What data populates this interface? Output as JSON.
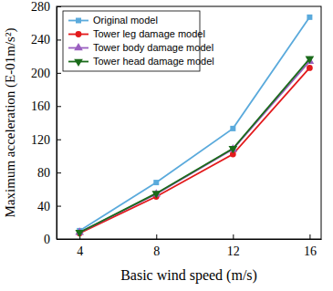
{
  "chart_data": {
    "type": "line",
    "x_label": "Basic wind speed (m/s)",
    "y_label": "Maximum acceleration (E-01m/s²)",
    "x": [
      4,
      8,
      12,
      16
    ],
    "series": [
      {
        "name": "Original model",
        "color": "#5aaadc",
        "marker": "square",
        "values": [
          10,
          68,
          133,
          267
        ]
      },
      {
        "name": "Tower leg damage model",
        "color": "#e31a1c",
        "marker": "circle",
        "values": [
          7,
          51,
          102,
          206
        ]
      },
      {
        "name": "Tower body damage model",
        "color": "#9a5fc0",
        "marker": "triangle-up",
        "values": [
          8,
          54,
          108,
          214
        ]
      },
      {
        "name": "Tower head damage model",
        "color": "#1a6b1a",
        "marker": "triangle-down",
        "values": [
          8,
          55,
          109,
          217
        ]
      }
    ],
    "xlim": [
      2.8,
      16.6
    ],
    "xticks": [
      4,
      8,
      12,
      16
    ],
    "ylim": [
      0,
      280
    ],
    "yticks": [
      0,
      40,
      80,
      120,
      160,
      200,
      240,
      280
    ],
    "grid": false,
    "legend": "upper left"
  }
}
